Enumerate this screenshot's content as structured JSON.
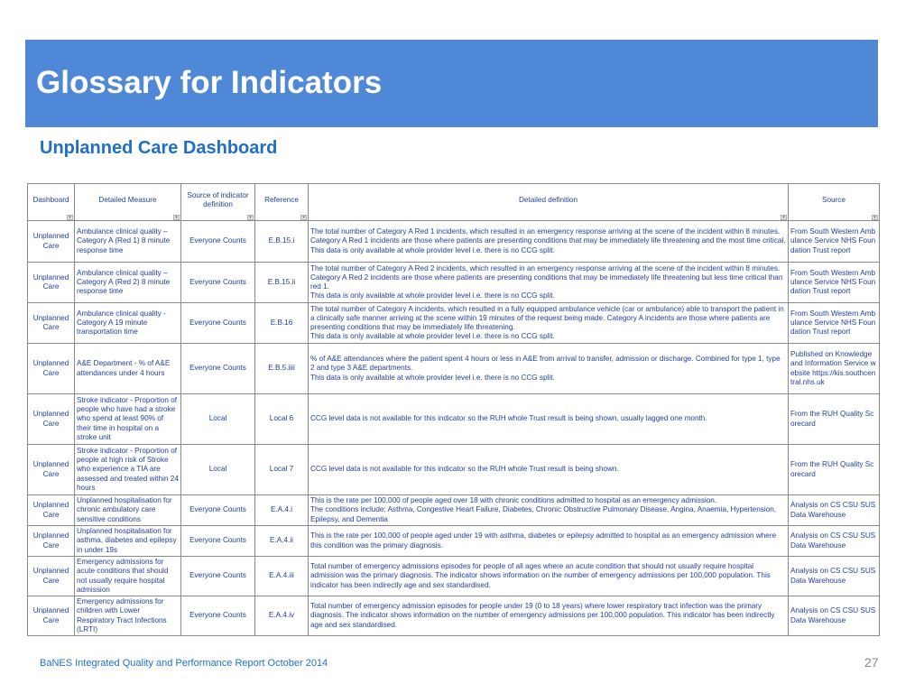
{
  "header": {
    "title": "Glossary for Indicators"
  },
  "subtitle": "Unplanned Care Dashboard",
  "table": {
    "columns": [
      "Dashboard",
      "Detailed Measure",
      "Source of indicator definition",
      "Reference",
      "Detailed definition",
      "Source"
    ],
    "rows": [
      {
        "dashboard": "Unplanned Care",
        "measure": "Ambulance clinical quality – Category A (Red 1) 8 minute response time",
        "source_def": "Everyone Counts",
        "reference": "E.B.15.i",
        "definition": [
          "The total number of Category A Red 1 incidents, which resulted in an emergency response arriving at the scene of the incident within 8 minutes. Category A Red 1 incidents are those where patients are presenting conditions that may be immediately life threatening and the most time critical.",
          "This data is only available at whole provider level i.e. there is no CCG split."
        ],
        "source": "From South Western Ambulance Service NHS Foundation Trust report"
      },
      {
        "dashboard": "Unplanned Care",
        "measure": "Ambulance clinical quality – Category A (Red 2) 8 minute response time",
        "source_def": "Everyone Counts",
        "reference": "E.B.15.ii",
        "definition": [
          "The total number of Category A Red 2 incidents, which resulted in an emergency response arriving at the scene of the incident within 8 minutes. Category A Red 2 incidents are those where patients are presenting conditions that may be immediately life threatening but less time critical than red 1.",
          "This data is only available at whole provider level i.e. there is no CCG split."
        ],
        "source": "From South Western Ambulance Service NHS Foundation Trust report"
      },
      {
        "dashboard": "Unplanned Care",
        "measure": "Ambulance clinical quality - Category A 19 minute transportation time",
        "source_def": "Everyone Counts",
        "reference": "E.B.16",
        "definition": [
          "The total number of Category A incidents, which resulted in a fully equipped ambulance vehicle (car or ambulance) able to transport the patient in a clinically safe manner arriving at the scene within 19 minutes of the request being made. Category A incidents are those where patients are presenting conditions that may be immediately life threatening.",
          "This data is only available at whole provider level i.e. there is no CCG split."
        ],
        "source": "From South Western Ambulance Service NHS Foundation Trust report"
      },
      {
        "dashboard": "Unplanned Care",
        "measure": "A&E Department - % of A&E attendances under 4 hours",
        "source_def": "Everyone Counts",
        "reference": "E.B.5.iiii",
        "definition": [
          "% of A&E attendances where the patient spent 4 hours or less in A&E from arrival to transfer, admission or discharge. Combined for type 1, type 2 and type 3 A&E departments.",
          "This data is only available at whole provider level i.e. there is no CCG split."
        ],
        "source": "Published on Knowledge and Information Service website https://kis.southcentral.nhs.uk"
      },
      {
        "dashboard": "Unplanned Care",
        "measure": "Stroke indicator - Proportion of people who have had a stroke who spend at least 90% of their time in hospital on a stroke unit",
        "source_def": "Local",
        "reference": "Local 6",
        "definition": [
          "CCG level data is not available for this indicator so the RUH whole Trust result is being shown, usually lagged one month."
        ],
        "source": "From the RUH Quality Scorecard"
      },
      {
        "dashboard": "Unplanned Care",
        "measure": "Stroke indicator - Proportion of people at high risk of Stroke who experience a TIA are assessed and treated within 24 hours",
        "source_def": "Local",
        "reference": "Local 7",
        "definition": [
          "CCG level data is not available for this indicator so the RUH whole Trust result is being shown."
        ],
        "source": "From the RUH Quality Scorecard"
      },
      {
        "dashboard": "Unplanned Care",
        "measure": "Unplanned hospitalisation for chronic ambulatory care sensitive conditions",
        "source_def": "Everyone Counts",
        "reference": "E.A.4.i",
        "definition": [
          "This is the rate per 100,000 of people aged over 18 with chronic conditions admitted to hospital as an emergency admission.",
          "The conditions include: Asthma, Congestive Heart Failure, Diabetes, Chronic Obstructive Pulmonary Disease, Angina, Anaemia, Hypertension, Epilepsy, and Dementia"
        ],
        "source": "Analysis on CS CSU SUS Data Warehouse"
      },
      {
        "dashboard": "Unplanned Care",
        "measure": "Unplanned hospitalisation for asthma, diabetes and epilepsy in under 19s",
        "source_def": "Everyone Counts",
        "reference": "E.A.4.ii",
        "definition": [
          "This is the rate per 100,000 of people aged under 19 with asthma, diabetes or epilepsy admitted to hospital as an emergency admission where this condition was the primary diagnosis."
        ],
        "source": "Analysis on CS CSU SUS Data Warehouse"
      },
      {
        "dashboard": "Unplanned Care",
        "measure": "Emergency admissions for acute conditions that should not usually require hospital admission",
        "source_def": "Everyone Counts",
        "reference": "E.A.4.iii",
        "definition": [
          "Total number of emergency admissions episodes for people of all ages where an acute condition that should not usually require hospital admission was the primary diagnosis. The indicator shows information on the number of emergency admissions per 100,000 population. This indicator has been indirectly age and sex standardised."
        ],
        "source": "Analysis on CS CSU SUS Data Warehouse"
      },
      {
        "dashboard": "Unplanned Care",
        "measure": "Emergency admissions for children with Lower Respiratory Tract Infections (LRTI)",
        "source_def": "Everyone Counts",
        "reference": "E.A.4.iv",
        "definition": [
          "Total number of emergency admission episodes for people under 19 (0 to 18 years) where lower respiratory tract infection was the primary diagnosis. The indicator shows information on the number of emergency admissions per 100,000 population. This indicator has been indirectly age and sex standardised."
        ],
        "source": "Analysis on CS CSU SUS Data Warehouse"
      }
    ]
  },
  "footer": {
    "text": "BaNES Integrated Quality and Performance Report October 2014",
    "page_number": "27"
  },
  "colors": {
    "banner": "#4f88d6",
    "subtitle": "#1f6fc5",
    "table_text": "#1f3f9a",
    "page_number": "#888888"
  },
  "icons": {
    "column_filter": "dropdown-arrow-icon"
  }
}
